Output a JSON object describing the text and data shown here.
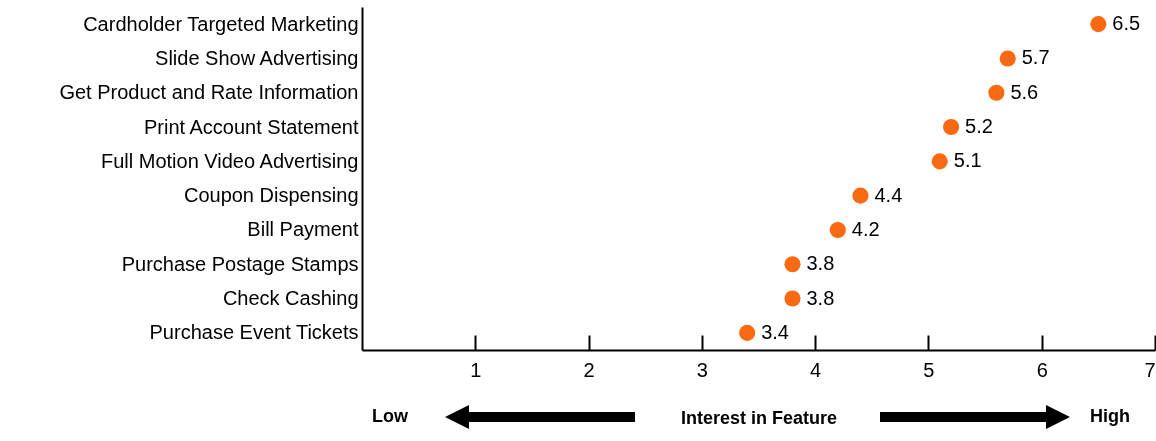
{
  "chart_data": {
    "type": "scatter",
    "orientation": "horizontal",
    "xlabel": "Interest in Feature",
    "categories": [
      "Cardholder Targeted Marketing",
      "Slide Show Advertising",
      "Get Product and Rate Information",
      "Print Account Statement",
      "Full Motion Video Advertising",
      "Coupon Dispensing",
      "Bill Payment",
      "Purchase Postage Stamps",
      "Check Cashing",
      "Purchase Event Tickets"
    ],
    "values": [
      6.5,
      5.7,
      5.6,
      5.2,
      5.1,
      4.4,
      4.2,
      3.8,
      3.8,
      3.4
    ],
    "color": "#f96a12",
    "marker": "circle",
    "data_labels": true,
    "grid": false,
    "xlim": [
      0,
      7
    ],
    "xticks": [
      1,
      2,
      3,
      4,
      5,
      6,
      7
    ],
    "annotations": [
      "Low",
      "High"
    ]
  }
}
